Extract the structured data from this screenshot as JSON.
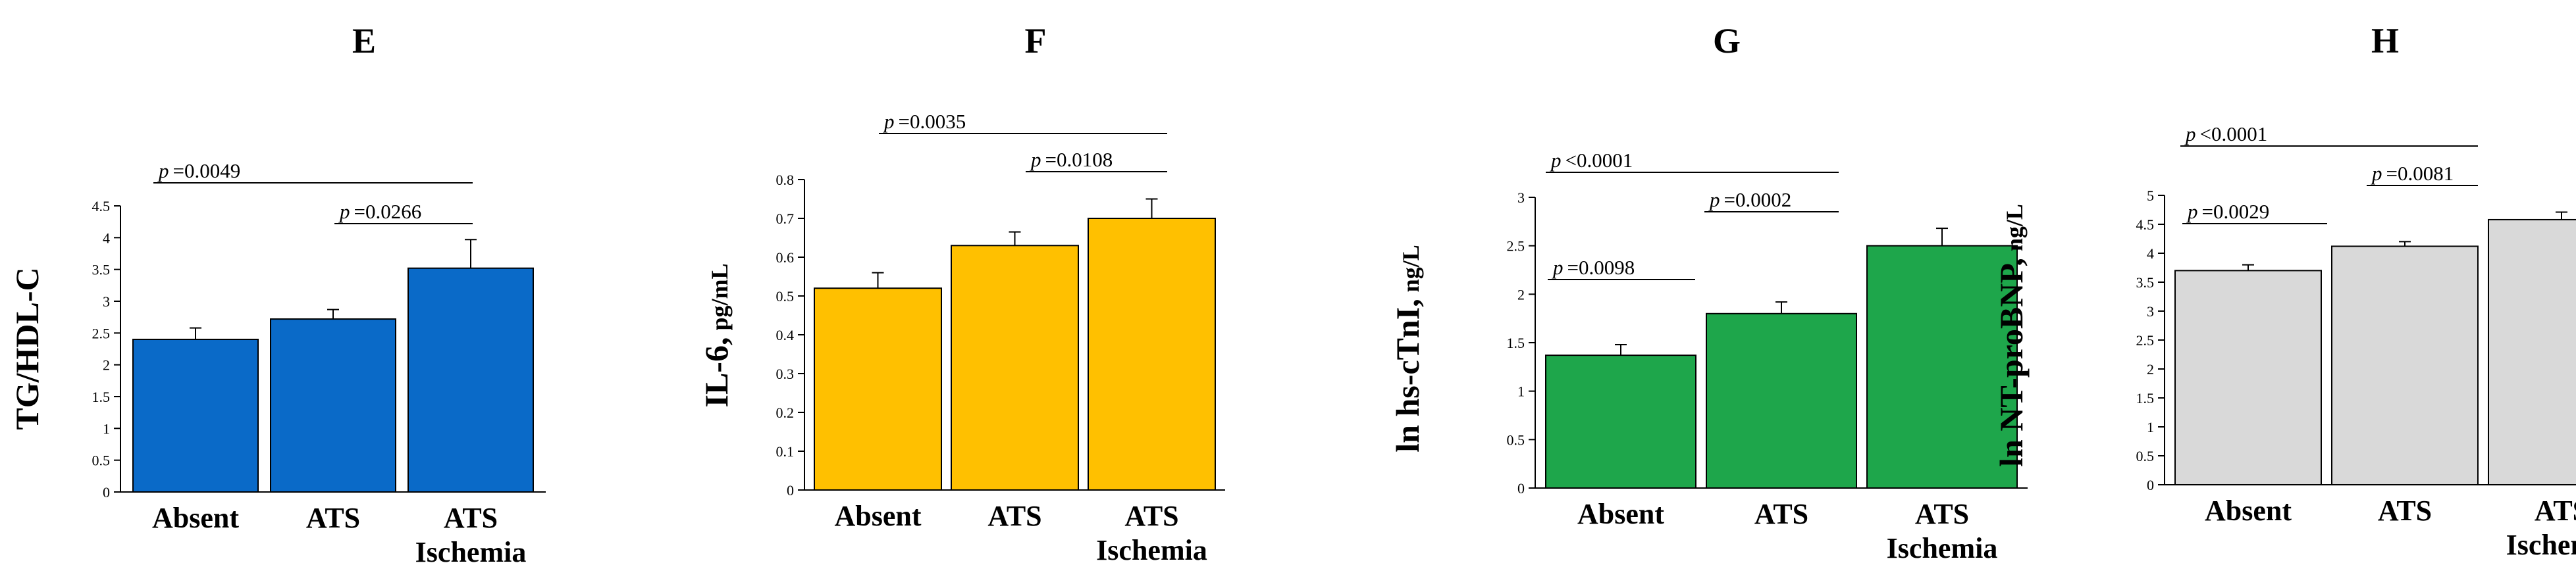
{
  "chart_data": [
    {
      "panel": "E",
      "type": "bar",
      "ylabel": "TG/HDL-C",
      "ylabel_unit": "",
      "ylim": [
        0,
        4.5
      ],
      "yticks": [
        0,
        0.5,
        1,
        1.5,
        2,
        2.5,
        3,
        3.5,
        4,
        4.5
      ],
      "ytick_labels": [
        "0",
        "0.5",
        "1",
        "1.5",
        "2",
        "2.5",
        "3",
        "3.5",
        "4",
        "4.5"
      ],
      "categories": [
        [
          "Absent"
        ],
        [
          "ATS"
        ],
        [
          "ATS",
          "Ischemia"
        ]
      ],
      "values": [
        2.4,
        2.72,
        3.52
      ],
      "errors": [
        0.18,
        0.15,
        0.45
      ],
      "color": "#0a6ac8",
      "comparisons": [
        {
          "from": 0,
          "to": 2,
          "p_label": "p",
          "p_value": "=0.0049"
        },
        {
          "from": 1,
          "to": 2,
          "p_label": "p",
          "p_value": "=0.0266"
        }
      ]
    },
    {
      "panel": "F",
      "type": "bar",
      "ylabel": "IL-6,",
      "ylabel_unit": "pg/mL",
      "ylim": [
        0,
        0.8
      ],
      "yticks": [
        0,
        0.1,
        0.2,
        0.3,
        0.4,
        0.5,
        0.6,
        0.7,
        0.8
      ],
      "ytick_labels": [
        "0",
        "0.1",
        "0.2",
        "0.3",
        "0.4",
        "0.5",
        "0.6",
        "0.7",
        "0.8"
      ],
      "categories": [
        [
          "Absent"
        ],
        [
          "ATS"
        ],
        [
          "ATS",
          "Ischemia"
        ]
      ],
      "values": [
        0.52,
        0.63,
        0.7
      ],
      "errors": [
        0.04,
        0.035,
        0.05
      ],
      "color": "#ffc000",
      "comparisons": [
        {
          "from": 0,
          "to": 2,
          "p_label": "p",
          "p_value": "=0.0035"
        },
        {
          "from": 1,
          "to": 2,
          "p_label": "p",
          "p_value": "=0.0108"
        }
      ]
    },
    {
      "panel": "G",
      "type": "bar",
      "ylabel": "ln hs-cTnI,",
      "ylabel_unit": "ng/L",
      "ylim": [
        0,
        3
      ],
      "yticks": [
        0,
        0.5,
        1,
        1.5,
        2,
        2.5,
        3
      ],
      "ytick_labels": [
        "0",
        "0.5",
        "1",
        "1.5",
        "2",
        "2.5",
        "3"
      ],
      "categories": [
        [
          "Absent"
        ],
        [
          "ATS"
        ],
        [
          "ATS",
          "Ischemia"
        ]
      ],
      "values": [
        1.37,
        1.8,
        2.5
      ],
      "errors": [
        0.11,
        0.12,
        0.18
      ],
      "color": "#1ea64b",
      "comparisons": [
        {
          "from": 0,
          "to": 2,
          "p_label": "p",
          "p_value": "<0.0001"
        },
        {
          "from": 1,
          "to": 2,
          "p_label": "p",
          "p_value": "=0.0002"
        },
        {
          "from": 0,
          "to": 1,
          "p_label": "p",
          "p_value": "=0.0098"
        }
      ]
    },
    {
      "panel": "H",
      "type": "bar",
      "ylabel": "ln NT-proBNP,",
      "ylabel_unit": "ng/L",
      "ylim": [
        0,
        5
      ],
      "yticks": [
        0,
        0.5,
        1,
        1.5,
        2,
        2.5,
        3,
        3.5,
        4,
        4.5,
        5
      ],
      "ytick_labels": [
        "0",
        "0.5",
        "1",
        "1.5",
        "2",
        "2.5",
        "3",
        "3.5",
        "4",
        "4.5",
        "5"
      ],
      "categories": [
        [
          "Absent"
        ],
        [
          "ATS"
        ],
        [
          "ATS",
          "Ischemia"
        ]
      ],
      "values": [
        3.7,
        4.12,
        4.58
      ],
      "errors": [
        0.1,
        0.08,
        0.13
      ],
      "color": "#d9d9d9",
      "comparisons": [
        {
          "from": 0,
          "to": 2,
          "p_label": "p",
          "p_value": "<0.0001"
        },
        {
          "from": 1,
          "to": 2,
          "p_label": "p",
          "p_value": "=0.0081"
        },
        {
          "from": 0,
          "to": 1,
          "p_label": "p",
          "p_value": "=0.0029"
        }
      ]
    }
  ]
}
